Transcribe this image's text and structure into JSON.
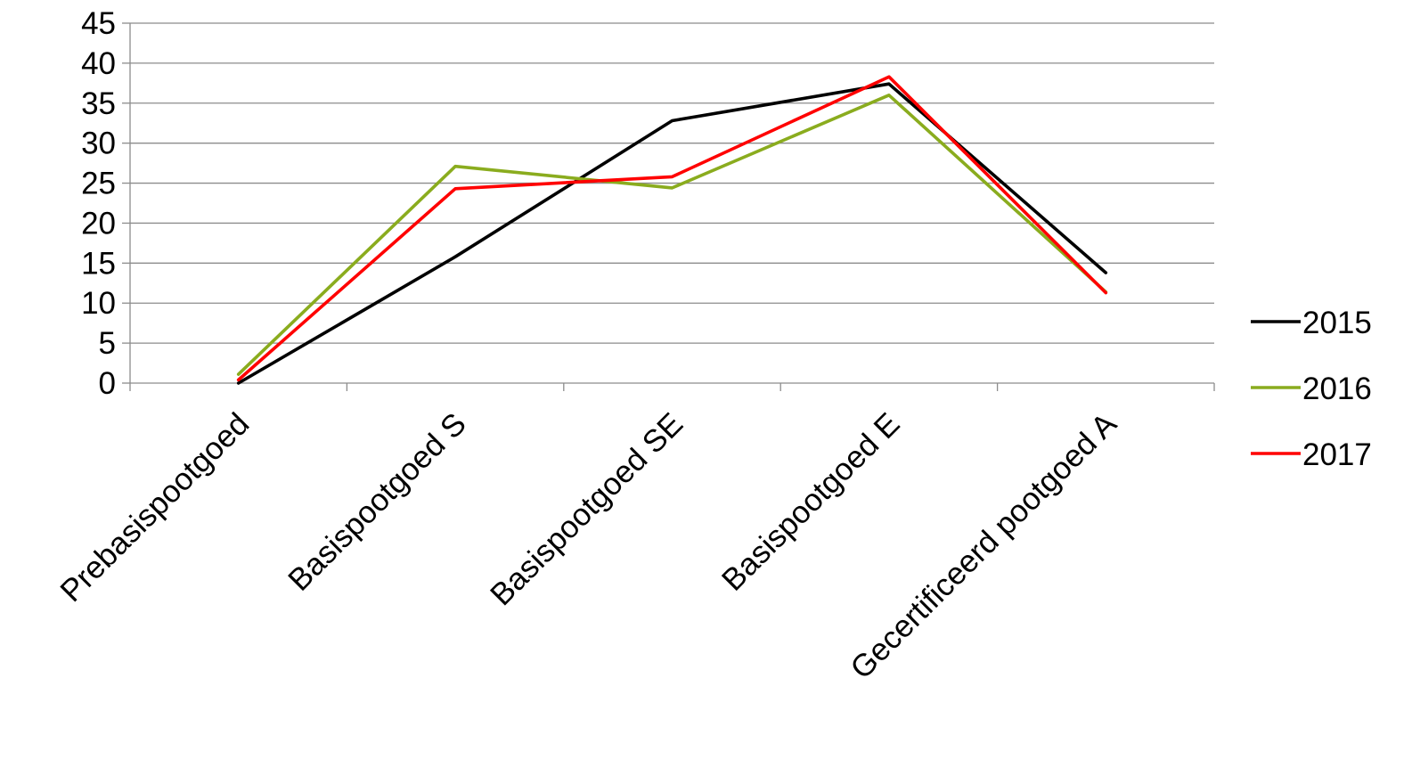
{
  "chart_data": {
    "type": "line",
    "title": "",
    "xlabel": "",
    "ylabel": "",
    "categories": [
      "Prebasispootgoed",
      "Basispootgoed S",
      "Basispootgoed SE",
      "Basispootgoed E",
      "Gecertificeerd pootgoed A"
    ],
    "ylim": [
      0,
      45
    ],
    "yticks": [
      0,
      5,
      10,
      15,
      20,
      25,
      30,
      35,
      40,
      45
    ],
    "grid": true,
    "legend_position": "right",
    "series": [
      {
        "name": "2015",
        "color": "#000000",
        "values": [
          0.0,
          15.8,
          32.8,
          37.4,
          13.8
        ]
      },
      {
        "name": "2016",
        "color": "#8aac1e",
        "values": [
          1.1,
          27.1,
          24.4,
          36.0,
          11.4
        ]
      },
      {
        "name": "2017",
        "color": "#ff0000",
        "values": [
          0.4,
          24.3,
          25.8,
          38.3,
          11.3
        ]
      }
    ]
  }
}
